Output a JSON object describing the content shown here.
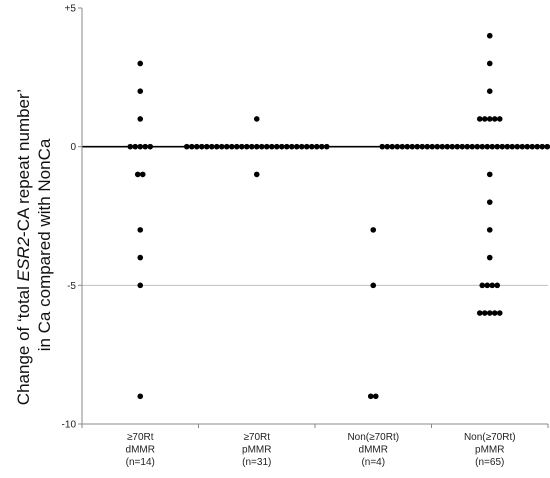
{
  "chart_data": {
    "type": "scatter",
    "ylabel": {
      "line1_pre": "Change of ‘total ",
      "line1_italic": "ESR2",
      "line1_post": "-CA repeat number’",
      "line2": "in Ca compared with NonCa"
    },
    "ylim": [
      -10,
      5
    ],
    "yticks": [
      {
        "value": 5,
        "label": "+5"
      },
      {
        "value": 0,
        "label": "0"
      },
      {
        "value": -5,
        "label": "-5"
      },
      {
        "value": -10,
        "label": "-10"
      }
    ],
    "gridlines": [
      -5
    ],
    "zero_line": 0,
    "categories": [
      {
        "lines": [
          "≥70Rt",
          "dMMR",
          "(n=14)"
        ]
      },
      {
        "lines": [
          "≥70Rt",
          "pMMR",
          "(n=31)"
        ]
      },
      {
        "lines": [
          "Non(≥70Rt)",
          "dMMR",
          "(n=4)"
        ]
      },
      {
        "lines": [
          "Non(≥70Rt)",
          "pMMR",
          "(n=65)"
        ]
      }
    ],
    "groups": [
      [
        3,
        2,
        1,
        0,
        0,
        0,
        0,
        0,
        -1,
        -1,
        -3,
        -4,
        -5,
        -9
      ],
      [
        1,
        0,
        0,
        0,
        0,
        0,
        0,
        0,
        0,
        0,
        0,
        0,
        0,
        0,
        0,
        0,
        0,
        0,
        0,
        0,
        0,
        0,
        0,
        0,
        0,
        0,
        0,
        0,
        0,
        0,
        -1
      ],
      [
        -3,
        -5,
        -9,
        -9
      ],
      [
        4,
        3,
        2,
        1,
        1,
        1,
        1,
        1,
        0,
        0,
        0,
        0,
        0,
        0,
        0,
        0,
        0,
        0,
        0,
        0,
        0,
        0,
        0,
        0,
        0,
        0,
        0,
        0,
        0,
        0,
        0,
        0,
        0,
        0,
        0,
        0,
        0,
        0,
        0,
        0,
        0,
        0,
        0,
        0,
        0,
        0,
        0,
        0,
        0,
        0,
        0,
        0,
        -1,
        -2,
        -3,
        -4,
        -5,
        -5,
        -5,
        -5,
        -6,
        -6,
        -6,
        -6,
        -6
      ]
    ],
    "marker_color": "#000000",
    "zero_line_color": "#000000",
    "grid_color": "#bfbfbf",
    "axis_color": "#888888"
  }
}
